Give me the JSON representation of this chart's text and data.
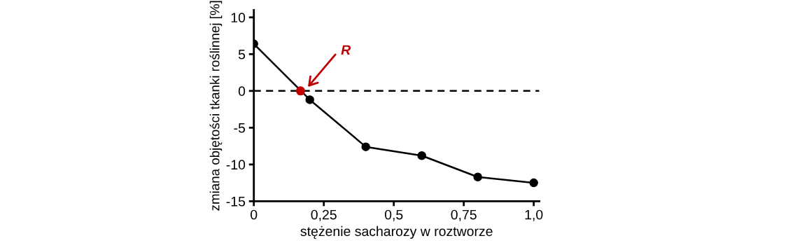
{
  "chart_data": {
    "type": "line",
    "xlabel": "stężenie sacharozy w roztworze",
    "ylabel": "zmiana objętości tkanki roślinnej [%]",
    "xlim": [
      0,
      1.02
    ],
    "ylim": [
      -15,
      11
    ],
    "xticks": [
      0,
      {
        "value": 0.25,
        "label": "0,25"
      },
      {
        "value": 0.5,
        "label": "0,5"
      },
      {
        "value": 0.75,
        "label": "0,75"
      },
      {
        "value": 1.0,
        "label": "1,0"
      }
    ],
    "yticks": [
      -15,
      -10,
      -5,
      0,
      5,
      10
    ],
    "series": [
      {
        "color": "#000000",
        "x": [
          0,
          0.2,
          0.4,
          0.6,
          0.8,
          1.0
        ],
        "values": [
          6.4,
          -1.2,
          -7.6,
          -8.8,
          -11.7,
          -12.5
        ],
        "marker": "circle"
      },
      {
        "type": "scatter",
        "color": "#c00000",
        "x": [
          0.167
        ],
        "values": [
          0
        ],
        "marker": "circle"
      }
    ],
    "ref_lines": [
      {
        "axis": "y",
        "value": 0,
        "color": "#000000",
        "line_style": "dashed"
      }
    ],
    "annotations": [
      "R"
    ],
    "grid": false,
    "legend": false
  }
}
